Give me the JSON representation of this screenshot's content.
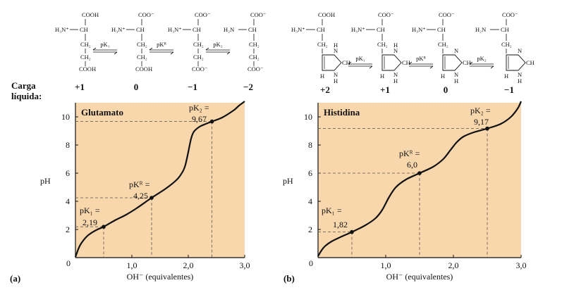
{
  "carga_label_line1": "Carga",
  "carga_label_line2": "líquida:",
  "panels": [
    {
      "id": "a",
      "panel_label": "(a)",
      "species": [
        {
          "top": "COOH",
          "amine": "H₃N⁺",
          "chain": [
            "CH₂",
            "CH₂"
          ],
          "bottom": "COOH",
          "charge": "+1"
        },
        {
          "top": "COO⁻",
          "amine": "H₃N⁺",
          "chain": [
            "CH₂",
            "CH₂"
          ],
          "bottom": "COOH",
          "charge": "0"
        },
        {
          "top": "COO⁻",
          "amine": "H₃N⁺",
          "chain": [
            "CH₂",
            "CH₂"
          ],
          "bottom": "COO⁻",
          "charge": "−1"
        },
        {
          "top": "COO⁻",
          "amine": "H₂N",
          "chain": [
            "CH₂",
            "CH₂"
          ],
          "bottom": "COO⁻",
          "charge": "−2"
        }
      ],
      "equilibria": [
        "pK₁",
        "pKᴿ",
        "pK₂"
      ]
    },
    {
      "id": "b",
      "panel_label": "(b)",
      "species": [
        {
          "top": "COOH",
          "amine": "H₃N⁺",
          "ring_h": [
            "H",
            "H",
            "H"
          ],
          "charge": "+2"
        },
        {
          "top": "COO⁻",
          "amine": "H₃N⁺",
          "ring_h": [
            "H",
            "H",
            "H"
          ],
          "charge": "+1"
        },
        {
          "top": "COO⁻",
          "amine": "H₃N⁺",
          "ring_h": [
            "H",
            "H"
          ],
          "charge": "0"
        },
        {
          "top": "COO⁻",
          "amine": "H₂N",
          "ring_h": [
            "H",
            "H"
          ],
          "charge": "−1"
        }
      ],
      "equilibria": [
        "pK₁",
        "pKᴿ",
        "pK₂"
      ]
    }
  ],
  "chart_data": [
    {
      "type": "line",
      "title": "Glutamato",
      "xlabel": "OH⁻ (equivalentes)",
      "ylabel": "pH",
      "xlim": [
        0,
        3.0
      ],
      "ylim": [
        0,
        11
      ],
      "xticks": [
        "0",
        "1,0",
        "2,0",
        "3,0"
      ],
      "yticks": [
        "2",
        "4",
        "6",
        "8",
        "10"
      ],
      "grid": false,
      "background": "#f9d7ad",
      "pk_points": [
        {
          "label": "pK₁ =",
          "value_text": "2,19",
          "x": 0.5,
          "y": 2.19
        },
        {
          "label": "pKᴿ =",
          "value_text": "4,25",
          "x": 1.35,
          "y": 4.25
        },
        {
          "label": "pK₂ =",
          "value_text": "9,67",
          "x": 2.42,
          "y": 9.67
        }
      ],
      "x": [
        0,
        0.05,
        0.1,
        0.2,
        0.3,
        0.4,
        0.5,
        0.7,
        0.9,
        1.1,
        1.35,
        1.6,
        1.8,
        1.9,
        1.95,
        2.0,
        2.05,
        2.1,
        2.2,
        2.3,
        2.42,
        2.6,
        2.8,
        2.9,
        3.0
      ],
      "y": [
        0.05,
        0.6,
        1.0,
        1.5,
        1.8,
        2.02,
        2.19,
        2.65,
        3.05,
        3.55,
        4.25,
        4.9,
        5.55,
        6.1,
        6.6,
        7.5,
        8.45,
        8.95,
        9.3,
        9.48,
        9.67,
        9.95,
        10.45,
        10.8,
        11.1
      ]
    },
    {
      "type": "line",
      "title": "Histidina",
      "xlabel": "OH⁻ (equivalentes)",
      "ylabel": "pH",
      "xlim": [
        0,
        3.0
      ],
      "ylim": [
        0,
        11
      ],
      "xticks": [
        "0",
        "1,0",
        "2,0",
        "3,0"
      ],
      "yticks": [
        "2",
        "4",
        "6",
        "8",
        "10"
      ],
      "grid": false,
      "background": "#f9d7ad",
      "pk_points": [
        {
          "label": "pK₁ =",
          "value_text": "1,82",
          "x": 0.5,
          "y": 1.82
        },
        {
          "label": "pKᴿ =",
          "value_text": "6,0",
          "x": 1.5,
          "y": 6.0
        },
        {
          "label": "pK₂ =",
          "value_text": "9,17",
          "x": 2.5,
          "y": 9.17
        }
      ],
      "x": [
        0,
        0.05,
        0.1,
        0.2,
        0.35,
        0.5,
        0.7,
        0.85,
        0.95,
        1.05,
        1.15,
        1.3,
        1.5,
        1.7,
        1.85,
        1.95,
        2.05,
        2.15,
        2.3,
        2.5,
        2.7,
        2.85,
        2.95,
        3.0
      ],
      "y": [
        0.1,
        0.5,
        0.8,
        1.15,
        1.5,
        1.82,
        2.3,
        2.8,
        3.4,
        4.3,
        5.0,
        5.55,
        6.0,
        6.45,
        7.0,
        7.6,
        8.2,
        8.6,
        8.9,
        9.17,
        9.5,
        10.0,
        10.6,
        11.1
      ]
    }
  ]
}
